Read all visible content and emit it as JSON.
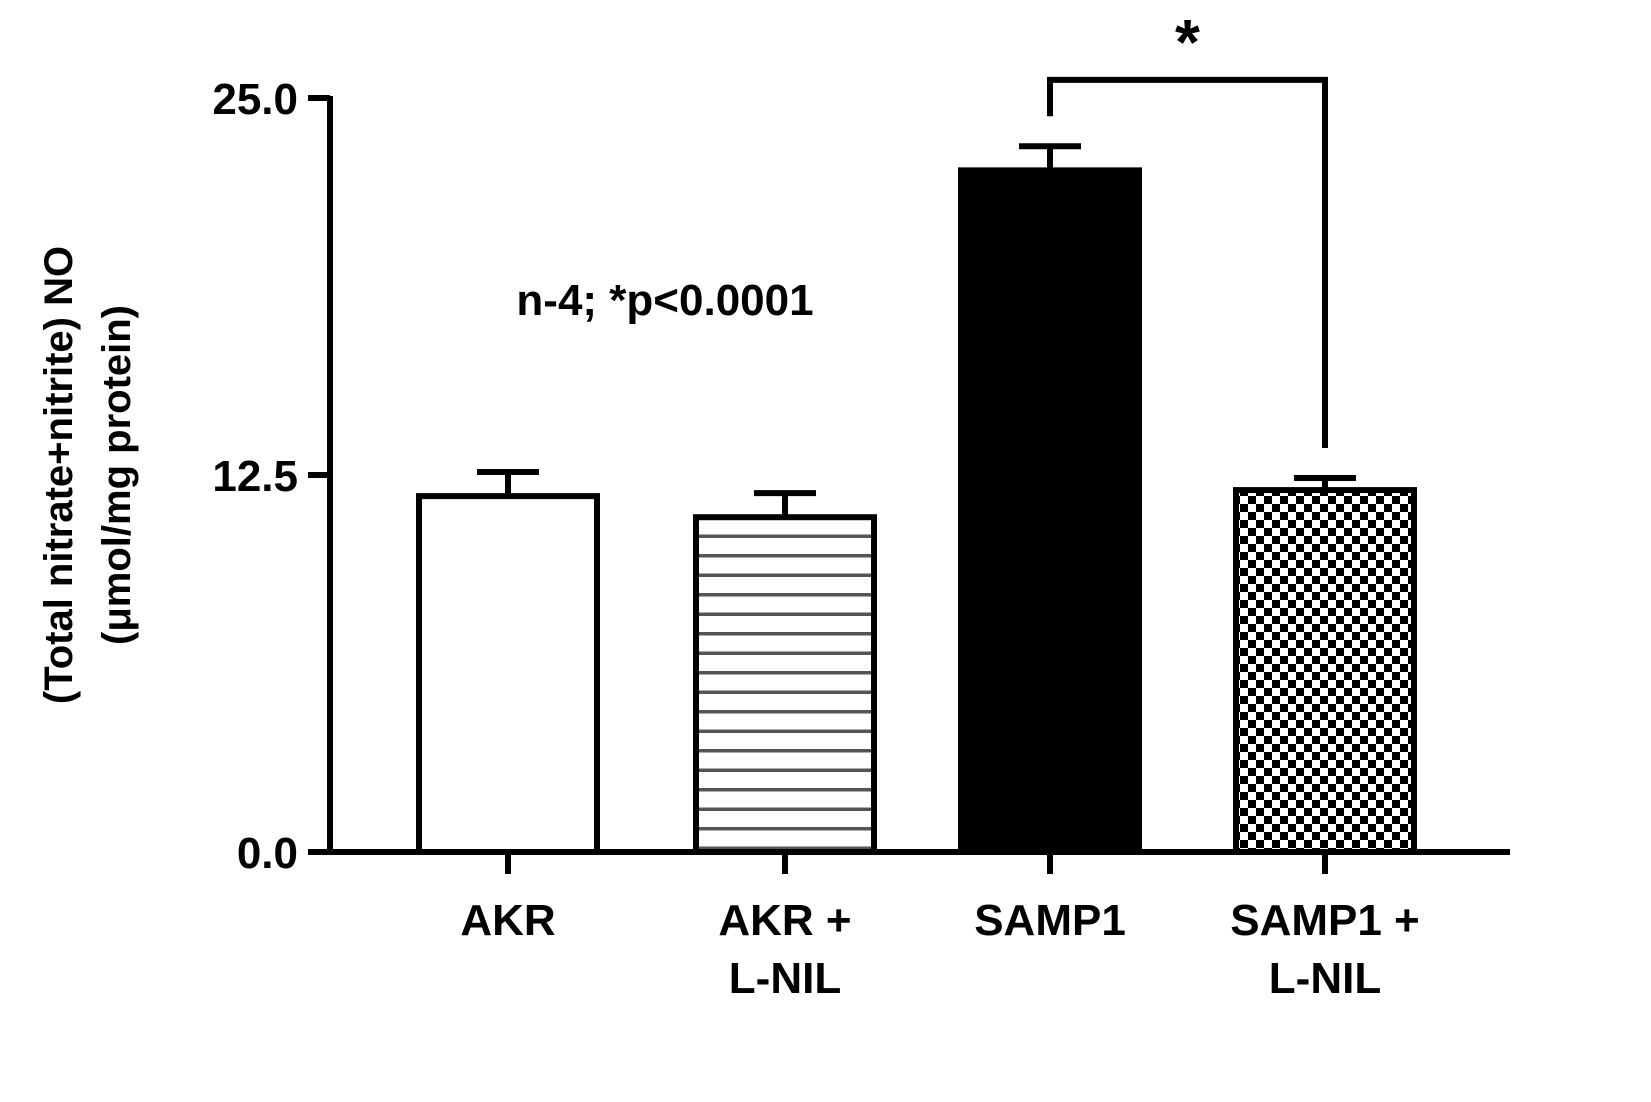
{
  "chart_data": {
    "type": "bar",
    "categories": [
      [
        "AKR"
      ],
      [
        "AKR +",
        "L-NIL"
      ],
      [
        "SAMP1"
      ],
      [
        "SAMP1 +",
        "L-NIL"
      ]
    ],
    "values": [
      11.8,
      11.1,
      22.6,
      12.0
    ],
    "errors": [
      0.8,
      0.8,
      0.8,
      0.4
    ],
    "fills": [
      "white",
      "horizontal-lines",
      "black",
      "checkerboard"
    ],
    "ylabel_lines": [
      "(Total nitrate+nitrite) NO",
      "(μmol/mg protein)"
    ],
    "xlabel": "",
    "title": "",
    "ylim": [
      0,
      25
    ],
    "yticks": [
      {
        "value": 0,
        "label": "0.0"
      },
      {
        "value": 12.5,
        "label": "12.5"
      },
      {
        "value": 25,
        "label": "25.0"
      }
    ],
    "annotation": "n-4; *p<0.0001",
    "significance": {
      "from": 2,
      "to": 3,
      "label": "*",
      "level": 25.6
    },
    "grid": false,
    "legend": "none"
  }
}
